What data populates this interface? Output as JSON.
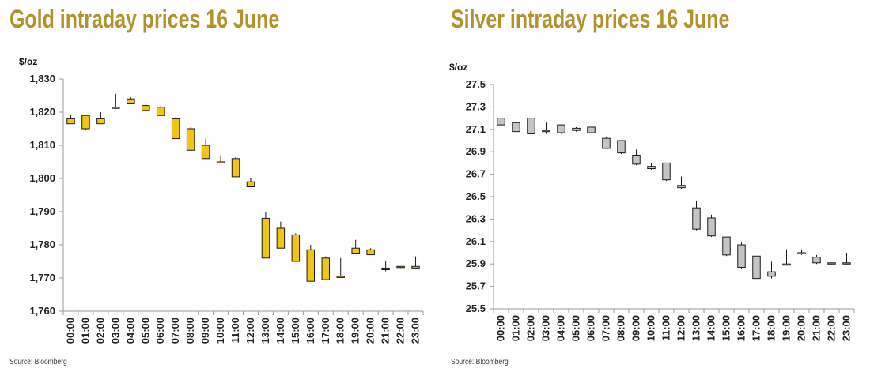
{
  "chart_data": [
    {
      "id": "gold",
      "type": "candlestick",
      "title": "Gold intraday prices 16 June",
      "ylabel": "$/oz",
      "ylim": [
        1760,
        1830
      ],
      "yticks": [
        1760,
        1770,
        1780,
        1790,
        1800,
        1810,
        1820,
        1830
      ],
      "ytick_labels": [
        "1,760",
        "1,770",
        "1,780",
        "1,790",
        "1,800",
        "1,810",
        "1,820",
        "1,830"
      ],
      "categories": [
        "00:00",
        "01:00",
        "02:00",
        "03:00",
        "04:00",
        "05:00",
        "06:00",
        "07:00",
        "08:00",
        "09:00",
        "10:00",
        "11:00",
        "12:00",
        "13:00",
        "14:00",
        "15:00",
        "16:00",
        "17:00",
        "18:00",
        "19:00",
        "20:00",
        "21:00",
        "22:00",
        "23:00"
      ],
      "open": [
        1818.0,
        1815.0,
        1818.0,
        1821.5,
        1824.0,
        1822.0,
        1821.5,
        1818.0,
        1815.0,
        1810.0,
        1805.0,
        1806.0,
        1799.0,
        1788.0,
        1785.0,
        1783.0,
        1778.5,
        1776.0,
        1770.5,
        1779.0,
        1778.5,
        1773.0,
        1773.5,
        1773.5
      ],
      "high": [
        1819.0,
        1819.0,
        1820.0,
        1825.5,
        1824.5,
        1822.5,
        1822.0,
        1818.5,
        1815.5,
        1812.0,
        1807.0,
        1806.5,
        1800.0,
        1790.0,
        1787.0,
        1783.5,
        1780.0,
        1776.5,
        1776.0,
        1781.5,
        1779.0,
        1775.0,
        1773.5,
        1776.5
      ],
      "low": [
        1816.5,
        1814.5,
        1816.5,
        1821.0,
        1822.5,
        1820.5,
        1819.0,
        1812.0,
        1808.5,
        1806.0,
        1804.5,
        1800.5,
        1797.5,
        1776.0,
        1779.0,
        1775.0,
        1769.0,
        1769.5,
        1770.0,
        1777.5,
        1777.0,
        1772.0,
        1773.0,
        1773.0
      ],
      "close": [
        1816.5,
        1819.0,
        1816.5,
        1821.5,
        1822.5,
        1820.5,
        1819.0,
        1812.0,
        1808.5,
        1806.0,
        1805.0,
        1800.5,
        1797.5,
        1776.0,
        1779.0,
        1775.0,
        1769.0,
        1769.5,
        1770.5,
        1777.5,
        1777.0,
        1772.5,
        1773.5,
        1773.0
      ],
      "colors": {
        "body": "#f2c418",
        "line": "#1a1a1a",
        "axis": "#9a9a9a"
      },
      "source": "Source: Bloomberg",
      "grid": false
    },
    {
      "id": "silver",
      "type": "candlestick",
      "title": "Silver intraday prices 16 June",
      "ylabel": "$/oz",
      "ylim": [
        25.5,
        27.5
      ],
      "yticks": [
        25.5,
        25.7,
        25.9,
        26.1,
        26.3,
        26.5,
        26.7,
        26.9,
        27.1,
        27.3,
        27.5
      ],
      "ytick_labels": [
        "25.5",
        "25.7",
        "25.9",
        "26.1",
        "26.3",
        "26.5",
        "26.7",
        "26.9",
        "27.1",
        "27.3",
        "27.5"
      ],
      "categories": [
        "00:00",
        "01:00",
        "02:00",
        "03:00",
        "04:00",
        "05:00",
        "06:00",
        "07:00",
        "08:00",
        "09:00",
        "10:00",
        "11:00",
        "12:00",
        "13:00",
        "14:00",
        "15:00",
        "16:00",
        "17:00",
        "18:00",
        "19:00",
        "20:00",
        "21:00",
        "22:00",
        "23:00"
      ],
      "open": [
        27.2,
        27.16,
        27.2,
        27.09,
        27.14,
        27.11,
        27.12,
        27.02,
        27.0,
        26.87,
        26.77,
        26.8,
        26.6,
        26.4,
        26.31,
        26.14,
        26.07,
        25.97,
        25.83,
        25.9,
        26.0,
        25.96,
        25.91,
        25.91
      ],
      "high": [
        27.22,
        27.16,
        27.21,
        27.16,
        27.14,
        27.12,
        27.12,
        27.03,
        27.0,
        26.92,
        26.8,
        26.8,
        26.68,
        26.46,
        26.34,
        26.14,
        26.09,
        25.97,
        25.92,
        26.03,
        26.03,
        25.98,
        25.91,
        26.0
      ],
      "low": [
        27.12,
        27.07,
        27.05,
        27.06,
        27.06,
        27.08,
        27.07,
        26.93,
        26.88,
        26.78,
        26.74,
        26.64,
        26.57,
        26.2,
        26.14,
        25.97,
        25.86,
        25.77,
        25.77,
        25.89,
        25.98,
        25.9,
        25.9,
        25.9
      ],
      "close": [
        27.14,
        27.08,
        27.06,
        27.08,
        27.07,
        27.09,
        27.07,
        26.93,
        26.89,
        26.79,
        26.75,
        26.65,
        26.58,
        26.21,
        26.15,
        25.98,
        25.87,
        25.77,
        25.79,
        25.9,
        25.99,
        25.91,
        25.91,
        25.91
      ],
      "colors": {
        "body": "#c4c4c4",
        "line": "#1a1a1a",
        "axis": "#9a9a9a"
      },
      "source": "Source: Bloomberg",
      "grid": false
    }
  ]
}
